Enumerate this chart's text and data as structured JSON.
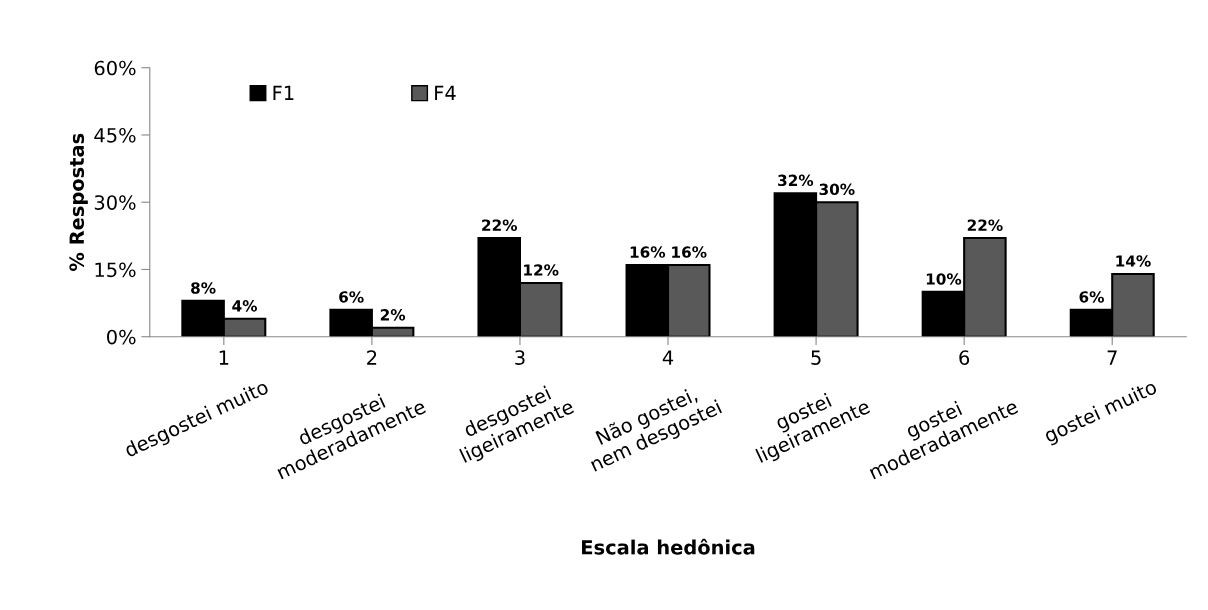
{
  "chart_data": {
    "type": "bar",
    "ylabel": "% Respostas",
    "categories": [
      "1",
      "2",
      "3",
      "4",
      "5",
      "6",
      "7"
    ],
    "series": [
      {
        "name": "F1",
        "color": "#000000",
        "values": [
          8,
          6,
          22,
          16,
          32,
          10,
          6
        ],
        "value_labels": [
          "8%",
          "6%",
          "22%",
          "16%",
          "32%",
          "10%",
          "6%"
        ]
      },
      {
        "name": "F4",
        "color": "#595959",
        "values": [
          4,
          2,
          12,
          16,
          30,
          22,
          14
        ],
        "value_labels": [
          "4%",
          "2%",
          "12%",
          "16%",
          "30%",
          "22%",
          "14%"
        ]
      }
    ],
    "ylim": [
      0,
      60
    ],
    "yticks": [
      {
        "value": 0,
        "label": "0%"
      },
      {
        "value": 15,
        "label": "15%"
      },
      {
        "value": 30,
        "label": "30%"
      },
      {
        "value": 45,
        "label": "45%"
      },
      {
        "value": 60,
        "label": "60%"
      }
    ],
    "annotations": [
      "desgostei muito",
      "desgostei\nmoderadamente",
      "desgostei\nligeiramente",
      "Não gostei,\nnem desgostei",
      "gostei\nligeiramente",
      "gostei\nmoderadamente",
      "gostei muito",
      "Escala hedônica"
    ],
    "legend": "top left",
    "grid": false
  }
}
